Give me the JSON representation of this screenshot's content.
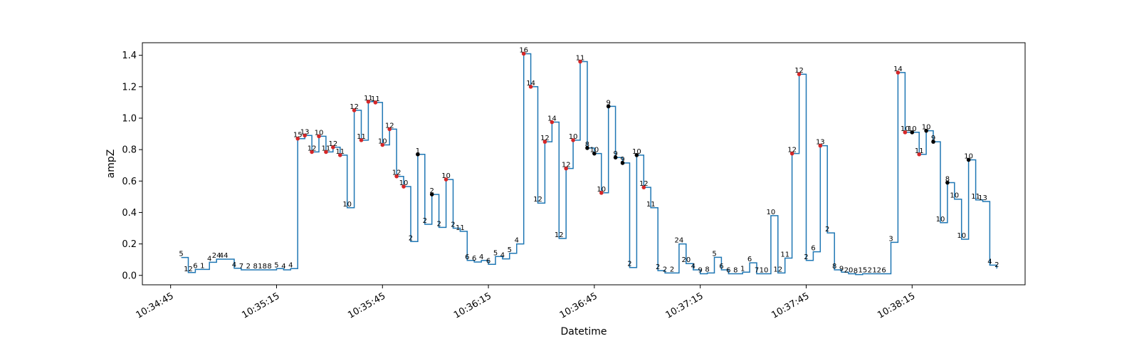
{
  "chart_data": {
    "type": "line",
    "step": "post",
    "title": "",
    "xlabel": "Datetime",
    "ylabel": "ampZ",
    "xlim": [
      "10:34:37",
      "10:38:47"
    ],
    "ylim": [
      -0.06,
      1.48
    ],
    "yticks": [
      0.0,
      0.2,
      0.4,
      0.6,
      0.8,
      1.0,
      1.2,
      1.4
    ],
    "ytick_labels": [
      "0.0",
      "0.2",
      "0.4",
      "0.6",
      "0.8",
      "1.0",
      "1.2",
      "1.4"
    ],
    "xticks": [
      "10:34:45",
      "10:35:15",
      "10:35:45",
      "10:36:15",
      "10:36:45",
      "10:37:15",
      "10:37:45",
      "10:38:15"
    ],
    "grid": false,
    "colors": {
      "line": "#1f77b4",
      "marker_red": "#d62728",
      "marker_black": "#000000"
    },
    "series": [
      {
        "points": [
          {
            "t": "10:34:48",
            "y": 0.114,
            "label": "5"
          },
          {
            "t": "10:34:48",
            "y": 0.114,
            "label": ""
          },
          {
            "t": "10:34:50",
            "y": 0.018,
            "label": "12"
          },
          {
            "t": "10:34:52",
            "y": 0.038,
            "label": "6"
          },
          {
            "t": "10:34:54",
            "y": 0.038,
            "label": "1"
          },
          {
            "t": "10:34:56",
            "y": 0.083,
            "label": "4"
          },
          {
            "t": "10:34:58",
            "y": 0.103,
            "label": "24"
          },
          {
            "t": "10:35:00",
            "y": 0.103,
            "label": "44"
          },
          {
            "t": "10:35:03",
            "y": 0.045,
            "label": "4"
          },
          {
            "t": "10:35:05",
            "y": 0.035,
            "label": "7"
          },
          {
            "t": "10:35:07",
            "y": 0.035,
            "label": "2"
          },
          {
            "t": "10:35:09",
            "y": 0.035,
            "label": "8"
          },
          {
            "t": "10:35:11",
            "y": 0.035,
            "label": "18"
          },
          {
            "t": "10:35:13",
            "y": 0.035,
            "label": "8"
          },
          {
            "t": "10:35:15",
            "y": 0.043,
            "label": "5"
          },
          {
            "t": "10:35:17",
            "y": 0.035,
            "label": "4"
          },
          {
            "t": "10:35:19",
            "y": 0.043,
            "label": "4"
          },
          {
            "t": "10:35:21",
            "y": 0.87,
            "label": "15",
            "marker": "red"
          },
          {
            "t": "10:35:23",
            "y": 0.89,
            "label": "13",
            "marker": "red"
          },
          {
            "t": "10:35:25",
            "y": 0.785,
            "label": "12",
            "marker": "red"
          },
          {
            "t": "10:35:27",
            "y": 0.885,
            "label": "10",
            "marker": "red"
          },
          {
            "t": "10:35:29",
            "y": 0.785,
            "label": "11",
            "marker": "red"
          },
          {
            "t": "10:35:31",
            "y": 0.815,
            "label": "12",
            "marker": "red"
          },
          {
            "t": "10:35:33",
            "y": 0.765,
            "label": "11",
            "marker": "red"
          },
          {
            "t": "10:35:35",
            "y": 0.43,
            "label": "10"
          },
          {
            "t": "10:35:37",
            "y": 1.05,
            "label": "12",
            "marker": "red"
          },
          {
            "t": "10:35:39",
            "y": 0.86,
            "label": "11",
            "marker": "red"
          },
          {
            "t": "10:35:41",
            "y": 1.105,
            "label": "11",
            "marker": "red"
          },
          {
            "t": "10:35:43",
            "y": 1.1,
            "label": "11",
            "marker": "red"
          },
          {
            "t": "10:35:45",
            "y": 0.83,
            "label": "10",
            "marker": "red"
          },
          {
            "t": "10:35:47",
            "y": 0.93,
            "label": "12",
            "marker": "red"
          },
          {
            "t": "10:35:49",
            "y": 0.63,
            "label": "12",
            "marker": "red"
          },
          {
            "t": "10:35:51",
            "y": 0.565,
            "label": "10",
            "marker": "red"
          },
          {
            "t": "10:35:53",
            "y": 0.215,
            "label": "2"
          },
          {
            "t": "10:35:55",
            "y": 0.77,
            "label": "1",
            "marker": "black"
          },
          {
            "t": "10:35:57",
            "y": 0.325,
            "label": "2"
          },
          {
            "t": "10:35:59",
            "y": 0.515,
            "label": "2",
            "marker": "black"
          },
          {
            "t": "10:36:01",
            "y": 0.305,
            "label": "2"
          },
          {
            "t": "10:36:03",
            "y": 0.61,
            "label": "10",
            "marker": "red"
          },
          {
            "t": "10:36:05",
            "y": 0.3,
            "label": "2"
          },
          {
            "t": "10:36:07",
            "y": 0.28,
            "label": "11"
          },
          {
            "t": "10:36:09",
            "y": 0.095,
            "label": "6"
          },
          {
            "t": "10:36:11",
            "y": 0.085,
            "label": "6"
          },
          {
            "t": "10:36:13",
            "y": 0.095,
            "label": "4"
          },
          {
            "t": "10:36:15",
            "y": 0.07,
            "label": "6"
          },
          {
            "t": "10:36:17",
            "y": 0.12,
            "label": "5"
          },
          {
            "t": "10:36:19",
            "y": 0.105,
            "label": "4"
          },
          {
            "t": "10:36:21",
            "y": 0.14,
            "label": "5"
          },
          {
            "t": "10:36:23",
            "y": 0.2,
            "label": "4"
          },
          {
            "t": "10:36:25",
            "y": 1.41,
            "label": "16",
            "marker": "red"
          },
          {
            "t": "10:36:27",
            "y": 1.2,
            "label": "14",
            "marker": "red"
          },
          {
            "t": "10:36:29",
            "y": 0.46,
            "label": "12"
          },
          {
            "t": "10:36:31",
            "y": 0.85,
            "label": "12",
            "marker": "red"
          },
          {
            "t": "10:36:33",
            "y": 0.975,
            "label": "14",
            "marker": "red"
          },
          {
            "t": "10:36:35",
            "y": 0.235,
            "label": "12"
          },
          {
            "t": "10:36:37",
            "y": 0.68,
            "label": "12",
            "marker": "red"
          },
          {
            "t": "10:36:39",
            "y": 0.86,
            "label": "10",
            "marker": "red"
          },
          {
            "t": "10:36:41",
            "y": 1.36,
            "label": "11",
            "marker": "red"
          },
          {
            "t": "10:36:43",
            "y": 0.81,
            "label": "8",
            "marker": "black"
          },
          {
            "t": "10:36:45",
            "y": 0.775,
            "label": "10",
            "marker": "black"
          },
          {
            "t": "10:36:47",
            "y": 0.525,
            "label": "10",
            "marker": "red"
          },
          {
            "t": "10:36:49",
            "y": 1.075,
            "label": "9",
            "marker": "black"
          },
          {
            "t": "10:36:51",
            "y": 0.75,
            "label": "9",
            "marker": "black"
          },
          {
            "t": "10:36:53",
            "y": 0.715,
            "label": "9",
            "marker": "black"
          },
          {
            "t": "10:36:55",
            "y": 0.05,
            "label": "2"
          },
          {
            "t": "10:36:57",
            "y": 0.765,
            "label": "10",
            "marker": "black"
          },
          {
            "t": "10:36:59",
            "y": 0.56,
            "label": "12",
            "marker": "red"
          },
          {
            "t": "10:37:01",
            "y": 0.43,
            "label": "11"
          },
          {
            "t": "10:37:03",
            "y": 0.03,
            "label": "2"
          },
          {
            "t": "10:37:05",
            "y": 0.015,
            "label": "2"
          },
          {
            "t": "10:37:07",
            "y": 0.015,
            "label": "2"
          },
          {
            "t": "10:37:09",
            "y": 0.2,
            "label": "24"
          },
          {
            "t": "10:37:11",
            "y": 0.075,
            "label": "20"
          },
          {
            "t": "10:37:13",
            "y": 0.035,
            "label": "4"
          },
          {
            "t": "10:37:15",
            "y": 0.01,
            "label": "9"
          },
          {
            "t": "10:37:17",
            "y": 0.015,
            "label": "8"
          },
          {
            "t": "10:37:19",
            "y": 0.115,
            "label": "5"
          },
          {
            "t": "10:37:21",
            "y": 0.035,
            "label": "6"
          },
          {
            "t": "10:37:23",
            "y": 0.01,
            "label": "6"
          },
          {
            "t": "10:37:25",
            "y": 0.01,
            "label": "8"
          },
          {
            "t": "10:37:27",
            "y": 0.02,
            "label": "1"
          },
          {
            "t": "10:37:29",
            "y": 0.08,
            "label": "6"
          },
          {
            "t": "10:37:31",
            "y": 0.01,
            "label": "7"
          },
          {
            "t": "10:37:33",
            "y": 0.01,
            "label": "10"
          },
          {
            "t": "10:37:35",
            "y": 0.38,
            "label": "10"
          },
          {
            "t": "10:37:37",
            "y": 0.015,
            "label": "12"
          },
          {
            "t": "10:37:39",
            "y": 0.11,
            "label": "11"
          },
          {
            "t": "10:37:41",
            "y": 0.775,
            "label": "12",
            "marker": "red"
          },
          {
            "t": "10:37:43",
            "y": 1.28,
            "label": "12",
            "marker": "red"
          },
          {
            "t": "10:37:45",
            "y": 0.095,
            "label": "2"
          },
          {
            "t": "10:37:47",
            "y": 0.15,
            "label": "6"
          },
          {
            "t": "10:37:49",
            "y": 0.825,
            "label": "13",
            "marker": "red"
          },
          {
            "t": "10:37:51",
            "y": 0.27,
            "label": "2"
          },
          {
            "t": "10:37:53",
            "y": 0.035,
            "label": "8"
          },
          {
            "t": "10:37:55",
            "y": 0.02,
            "label": "9"
          },
          {
            "t": "10:37:57",
            "y": 0.01,
            "label": "20"
          },
          {
            "t": "10:37:59",
            "y": 0.005,
            "label": "8"
          },
          {
            "t": "10:38:01",
            "y": 0.01,
            "label": "15"
          },
          {
            "t": "10:38:03",
            "y": 0.01,
            "label": "2"
          },
          {
            "t": "10:38:05",
            "y": 0.01,
            "label": "12"
          },
          {
            "t": "10:38:07",
            "y": 0.01,
            "label": "6"
          },
          {
            "t": "10:38:09",
            "y": 0.21,
            "label": "3"
          },
          {
            "t": "10:38:11",
            "y": 1.29,
            "label": "14",
            "marker": "red"
          },
          {
            "t": "10:38:13",
            "y": 0.91,
            "label": "10",
            "marker": "red"
          },
          {
            "t": "10:38:15",
            "y": 0.91,
            "label": "10",
            "marker": "black"
          },
          {
            "t": "10:38:17",
            "y": 0.77,
            "label": "11",
            "marker": "red"
          },
          {
            "t": "10:38:19",
            "y": 0.92,
            "label": "10",
            "marker": "black"
          },
          {
            "t": "10:38:21",
            "y": 0.85,
            "label": "9",
            "marker": "black"
          },
          {
            "t": "10:38:23",
            "y": 0.335,
            "label": "10"
          },
          {
            "t": "10:38:25",
            "y": 0.59,
            "label": "8",
            "marker": "black"
          },
          {
            "t": "10:38:27",
            "y": 0.485,
            "label": "10"
          },
          {
            "t": "10:38:29",
            "y": 0.23,
            "label": "10"
          },
          {
            "t": "10:38:31",
            "y": 0.735,
            "label": "10",
            "marker": "black"
          },
          {
            "t": "10:38:33",
            "y": 0.48,
            "label": "11"
          },
          {
            "t": "10:38:35",
            "y": 0.47,
            "label": "13"
          },
          {
            "t": "10:38:37",
            "y": 0.065,
            "label": "4"
          },
          {
            "t": "10:38:39",
            "y": 0.045,
            "label": "2"
          }
        ]
      }
    ]
  }
}
